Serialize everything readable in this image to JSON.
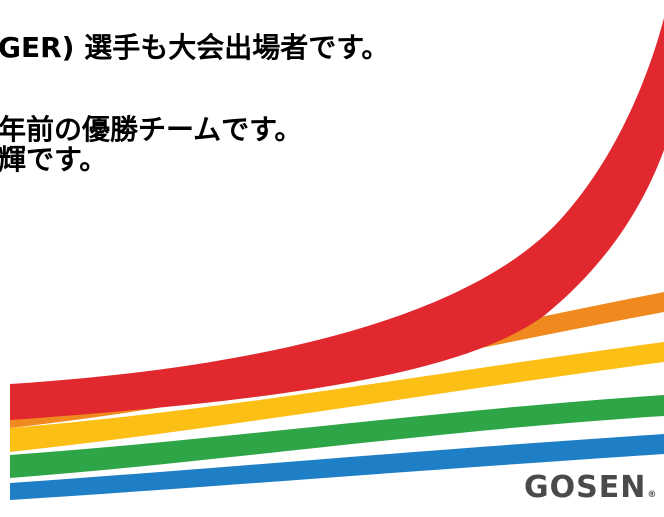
{
  "text_lines": [
    "GER) 選手も大会出場者です。",
    "年前の優勝チームです。",
    "輝です。"
  ],
  "logo": {
    "name": "GOSEN",
    "mark": "®",
    "color": "#4a4a4a"
  },
  "swoosh_colors": {
    "red": "#e0282e",
    "orange": "#f08a1e",
    "yellow": "#fcbf16",
    "green": "#2ea546",
    "blue": "#1f7fc6"
  }
}
